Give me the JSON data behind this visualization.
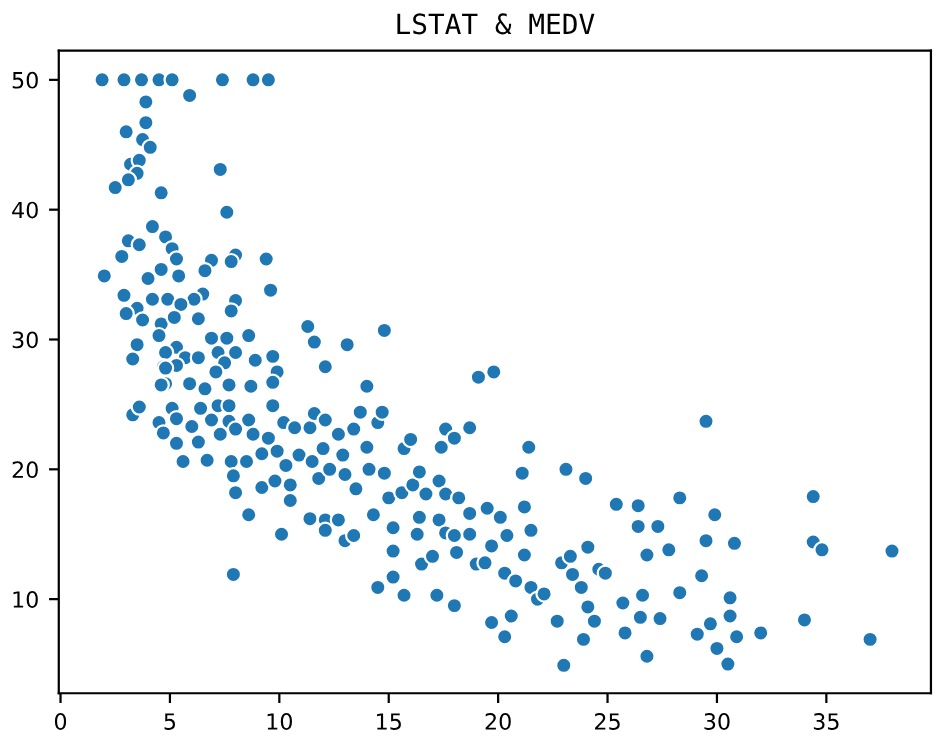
{
  "chart_data": {
    "type": "scatter",
    "title": "LSTAT & MEDV",
    "x": [
      1.9,
      2.9,
      3.7,
      4.5,
      5.1,
      7.4,
      8.8,
      9.5,
      5.9,
      3.9,
      3.9,
      3.0,
      3.75,
      4.1,
      3.2,
      3.6,
      3.5,
      3.1,
      2.5,
      4.6,
      7.3,
      7.6,
      4.2,
      4.8,
      3.1,
      3.6,
      5.1,
      5.3,
      2.8,
      6.9,
      8.0,
      7.8,
      9.4,
      2.0,
      4.6,
      4.0,
      5.4,
      6.6,
      9.6,
      2.9,
      4.2,
      4.9,
      6.5,
      6.1,
      8.0,
      3.5,
      5.5,
      3.0,
      7.8,
      3.75,
      4.6,
      5.2,
      6.3,
      6.9,
      7.6,
      8.6,
      11.3,
      11.6,
      13.1,
      14.8,
      3.5,
      5.3,
      4.5,
      3.3,
      4.8,
      5.7,
      6.3,
      7.2,
      8.0,
      8.9,
      9.7,
      7.5,
      12.1,
      4.7,
      5.3,
      9.9,
      7.1,
      19.1,
      19.8,
      4.8,
      5.9,
      6.6,
      7.7,
      8.7,
      9.7,
      14.0,
      3.3,
      3.6,
      4.6,
      4.8,
      4.5,
      5.1,
      5.3,
      4.7,
      5.3,
      5.6,
      6.0,
      6.4,
      6.3,
      6.7,
      6.9,
      7.2,
      7.3,
      7.7,
      7.7,
      7.8,
      8.0,
      7.9,
      8.0,
      7.9,
      8.6,
      8.6,
      8.8,
      8.5,
      9.2,
      9.2,
      9.7,
      9.5,
      10.2,
      9.9,
      9.8,
      10.3,
      10.5,
      10.5,
      10.7,
      10.9,
      10.1,
      11.4,
      11.6,
      11.5,
      11.4,
      11.8,
      12.0,
      12.1,
      12.1,
      12.1,
      12.3,
      12.7,
      12.7,
      13.0,
      12.9,
      13.0,
      13.4,
      13.4,
      13.5,
      13.7,
      14.0,
      14.1,
      14.3,
      14.5,
      14.5,
      14.8,
      14.7,
      15.0,
      15.2,
      15.2,
      15.2,
      15.7,
      15.7,
      16.0,
      15.6,
      16.1,
      16.3,
      16.4,
      16.4,
      16.5,
      16.7,
      17.0,
      17.2,
      17.3,
      17.3,
      17.6,
      17.4,
      17.6,
      17.6,
      18.0,
      18.0,
      18.1,
      18.0,
      18.2,
      18.7,
      18.7,
      18.7,
      19.0,
      19.4,
      19.5,
      19.7,
      19.7,
      20.1,
      20.3,
      20.3,
      20.4,
      20.6,
      20.8,
      21.1,
      21.2,
      21.2,
      21.4,
      21.5,
      21.5,
      21.8,
      22.1,
      22.7,
      22.9,
      23.1,
      23.0,
      23.3,
      23.4,
      23.8,
      23.9,
      24.0,
      24.1,
      24.1,
      24.4,
      24.6,
      24.9,
      25.4,
      25.7,
      25.8,
      26.4,
      26.4,
      26.5,
      26.6,
      26.8,
      26.8,
      27.3,
      27.4,
      27.8,
      28.3,
      28.3,
      29.1,
      29.3,
      29.5,
      29.5,
      29.7,
      29.9,
      30.0,
      30.5,
      30.6,
      30.6,
      30.8,
      30.9,
      32.0,
      34.0,
      34.4,
      34.4,
      34.8,
      37.0,
      38.0
    ],
    "values": [
      50,
      50,
      50,
      50,
      50,
      50,
      50,
      50,
      48.8,
      46.7,
      48.3,
      46.0,
      45.4,
      44.8,
      43.5,
      43.8,
      42.8,
      42.3,
      41.7,
      41.3,
      43.1,
      39.8,
      38.7,
      37.9,
      37.6,
      37.3,
      37.0,
      36.2,
      36.4,
      36.1,
      36.5,
      36.0,
      36.2,
      34.9,
      35.4,
      34.7,
      34.9,
      35.3,
      33.8,
      33.4,
      33.1,
      33.1,
      33.5,
      33.1,
      33.0,
      32.4,
      32.7,
      32.0,
      32.2,
      31.5,
      31.2,
      31.7,
      31.6,
      30.1,
      30.1,
      30.3,
      31.0,
      29.8,
      29.6,
      30.7,
      29.6,
      29.4,
      30.3,
      28.5,
      29.0,
      28.6,
      28.6,
      29.0,
      29.0,
      28.4,
      28.7,
      28.2,
      27.9,
      27.9,
      28.0,
      27.5,
      27.5,
      27.1,
      27.5,
      26.6,
      26.6,
      26.2,
      26.5,
      26.4,
      26.7,
      26.4,
      24.2,
      24.8,
      26.5,
      27.8,
      23.6,
      24.7,
      23.9,
      22.8,
      22.0,
      20.6,
      23.3,
      24.7,
      22.1,
      20.7,
      23.8,
      24.9,
      22.7,
      24.9,
      23.7,
      20.6,
      23.1,
      19.5,
      18.2,
      11.9,
      16.5,
      23.8,
      22.7,
      20.6,
      21.2,
      18.6,
      24.9,
      22.4,
      23.6,
      21.4,
      19.1,
      20.3,
      18.8,
      17.6,
      23.2,
      21.1,
      15.0,
      23.2,
      24.3,
      20.6,
      16.2,
      19.3,
      21.6,
      23.8,
      16.1,
      15.3,
      20.0,
      16.1,
      22.7,
      19.6,
      21.1,
      14.5,
      14.9,
      23.1,
      18.5,
      24.4,
      21.7,
      20.0,
      16.5,
      23.6,
      10.9,
      19.7,
      24.4,
      17.8,
      15.5,
      13.7,
      11.7,
      10.3,
      21.6,
      22.3,
      18.2,
      18.8,
      15.0,
      19.8,
      16.3,
      12.7,
      18.1,
      13.3,
      10.3,
      19.1,
      16.1,
      23.1,
      21.7,
      18.1,
      15.1,
      14.9,
      9.5,
      13.6,
      22.4,
      17.8,
      16.6,
      23.2,
      15.0,
      12.7,
      12.8,
      17.0,
      8.2,
      14.1,
      16.3,
      12.0,
      7.1,
      14.9,
      8.7,
      11.4,
      19.7,
      13.4,
      17.1,
      21.7,
      15.3,
      10.9,
      10.0,
      10.4,
      8.3,
      12.8,
      20.0,
      4.9,
      13.3,
      11.9,
      10.9,
      6.9,
      19.3,
      9.4,
      14.0,
      8.3,
      12.3,
      12.0,
      17.3,
      9.7,
      7.4,
      17.2,
      15.6,
      8.6,
      10.3,
      5.6,
      13.4,
      15.6,
      8.5,
      13.8,
      17.8,
      10.5,
      7.3,
      11.8,
      23.7,
      14.5,
      8.1,
      16.5,
      6.2,
      5.0,
      10.1,
      8.7,
      14.3,
      7.1,
      7.4,
      8.4,
      17.9,
      14.4,
      13.8,
      6.9,
      13.7
    ],
    "color": "#1f77b4",
    "marker": "circle",
    "xlim": [
      -0.08,
      39.78
    ],
    "ylim": [
      2.75,
      52.25
    ],
    "xticks": [
      0,
      5,
      10,
      15,
      20,
      25,
      30,
      35
    ],
    "yticks": [
      10,
      20,
      30,
      40,
      50
    ],
    "grid": false,
    "legend": false
  }
}
